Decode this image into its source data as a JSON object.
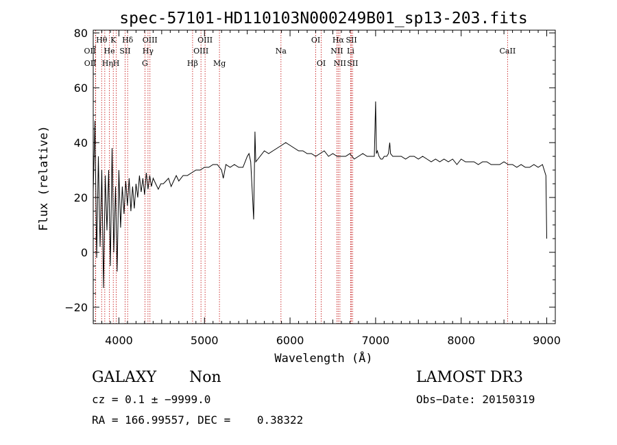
{
  "chart_data": {
    "type": "line",
    "title": "spec-57101-HD110103N000249B01_sp13-203.fits",
    "xlabel": "Wavelength (Å)",
    "ylabel": "Flux (relative)",
    "xlim": [
      3700,
      9100
    ],
    "ylim": [
      -26,
      81
    ],
    "xticks": [
      4000,
      5000,
      6000,
      7000,
      8000,
      9000
    ],
    "yticks": [
      -20,
      0,
      20,
      40,
      60,
      80
    ],
    "xtick_labels": [
      "4000",
      "5000",
      "6000",
      "7000",
      "8000",
      "9000"
    ],
    "ytick_labels": [
      "−20",
      "0",
      "20",
      "40",
      "60",
      "80"
    ],
    "series": [
      {
        "name": "spectrum",
        "x": [
          3700,
          3720,
          3740,
          3760,
          3780,
          3800,
          3820,
          3840,
          3860,
          3880,
          3900,
          3920,
          3940,
          3960,
          3980,
          4000,
          4020,
          4040,
          4060,
          4080,
          4100,
          4120,
          4140,
          4160,
          4180,
          4200,
          4220,
          4240,
          4260,
          4280,
          4300,
          4320,
          4340,
          4360,
          4380,
          4400,
          4430,
          4460,
          4490,
          4520,
          4550,
          4580,
          4610,
          4640,
          4670,
          4700,
          4750,
          4800,
          4850,
          4900,
          4950,
          5000,
          5050,
          5100,
          5150,
          5200,
          5220,
          5250,
          5300,
          5350,
          5400,
          5450,
          5500,
          5520,
          5540,
          5560,
          5575,
          5590,
          5600,
          5650,
          5700,
          5750,
          5800,
          5850,
          5900,
          5950,
          6000,
          6050,
          6100,
          6150,
          6200,
          6250,
          6300,
          6350,
          6400,
          6450,
          6500,
          6550,
          6600,
          6650,
          6700,
          6750,
          6800,
          6850,
          6900,
          6950,
          6985,
          7000,
          7010,
          7020,
          7040,
          7060,
          7080,
          7100,
          7130,
          7150,
          7165,
          7175,
          7200,
          7250,
          7300,
          7350,
          7400,
          7450,
          7500,
          7550,
          7600,
          7650,
          7700,
          7750,
          7800,
          7850,
          7900,
          7950,
          8000,
          8050,
          8100,
          8150,
          8200,
          8250,
          8300,
          8350,
          8400,
          8450,
          8500,
          8550,
          8600,
          8650,
          8700,
          8750,
          8800,
          8850,
          8900,
          8950,
          8990,
          9000
        ],
        "y": [
          22,
          48,
          -2,
          35,
          2,
          30,
          -13,
          28,
          8,
          30,
          -5,
          38,
          0,
          24,
          -7,
          30,
          9,
          24,
          14,
          26,
          17,
          27,
          15,
          24,
          16,
          25,
          20,
          28,
          22,
          27,
          21,
          29,
          23,
          28,
          24,
          27,
          25,
          23,
          25,
          25,
          26,
          27,
          24,
          26,
          28,
          26,
          28,
          28,
          29,
          30,
          30,
          31,
          31,
          32,
          32,
          30,
          27,
          32,
          31,
          32,
          31,
          31,
          35,
          36,
          33,
          21,
          12,
          44,
          33,
          35,
          37,
          36,
          37,
          38,
          39,
          40,
          39,
          38,
          37,
          37,
          36,
          36,
          35,
          36,
          37,
          35,
          36,
          35,
          35,
          35,
          36,
          34,
          35,
          36,
          35,
          35,
          35,
          55,
          36,
          37,
          35,
          34,
          34,
          35,
          35,
          36,
          40,
          36,
          35,
          35,
          35,
          34,
          35,
          35,
          34,
          35,
          34,
          33,
          34,
          33,
          34,
          33,
          34,
          32,
          34,
          33,
          33,
          33,
          32,
          33,
          33,
          32,
          32,
          32,
          33,
          32,
          32,
          31,
          32,
          31,
          31,
          32,
          31,
          32,
          28,
          5
        ]
      }
    ],
    "lines": [
      {
        "label": "OII",
        "wavelength": 3727,
        "row": 1,
        "offset": -8
      },
      {
        "label": "OII",
        "wavelength": 3729,
        "row": 2,
        "offset": -8
      },
      {
        "label": "Hθ",
        "wavelength": 3798,
        "row": 0,
        "offset": 0
      },
      {
        "label": "Hη",
        "wavelength": 3835,
        "row": 2,
        "offset": 4
      },
      {
        "label": "He",
        "wavelength": 3889,
        "row": 1,
        "offset": 0
      },
      {
        "label": "K",
        "wavelength": 3934,
        "row": 0,
        "offset": 0
      },
      {
        "label": "H",
        "wavelength": 3969,
        "row": 2,
        "offset": 0
      },
      {
        "label": "Hδ",
        "wavelength": 4102,
        "row": 0,
        "offset": 0
      },
      {
        "label": "SII",
        "wavelength": 4072,
        "row": 1,
        "offset": 0
      },
      {
        "label": "OIII",
        "wavelength": 4363,
        "row": 0,
        "offset": 0
      },
      {
        "label": "Hγ",
        "wavelength": 4340,
        "row": 1,
        "offset": 0
      },
      {
        "label": "G",
        "wavelength": 4304,
        "row": 2,
        "offset": 0
      },
      {
        "label": "Hβ",
        "wavelength": 4861,
        "row": 2,
        "offset": 0
      },
      {
        "label": "OIII",
        "wavelength": 4959,
        "row": 1,
        "offset": 0
      },
      {
        "label": "OIII",
        "wavelength": 5007,
        "row": 0,
        "offset": 0
      },
      {
        "label": "Mg",
        "wavelength": 5175,
        "row": 2,
        "offset": 0
      },
      {
        "label": "Na",
        "wavelength": 5894,
        "row": 1,
        "offset": 0
      },
      {
        "label": "OI",
        "wavelength": 6300,
        "row": 0,
        "offset": 0
      },
      {
        "label": "OI",
        "wavelength": 6364,
        "row": 2,
        "offset": 0
      },
      {
        "label": "Hα",
        "wavelength": 6563,
        "row": 0,
        "offset": 0
      },
      {
        "label": "NII",
        "wavelength": 6548,
        "row": 1,
        "offset": 0
      },
      {
        "label": "NII",
        "wavelength": 6583,
        "row": 2,
        "offset": 0
      },
      {
        "label": "SII",
        "wavelength": 6717,
        "row": 0,
        "offset": 0
      },
      {
        "label": "Li",
        "wavelength": 6708,
        "row": 1,
        "offset": 0
      },
      {
        "label": "SII",
        "wavelength": 6731,
        "row": 2,
        "offset": 0
      },
      {
        "label": "CaII",
        "wavelength": 8542,
        "row": 1,
        "offset": 0
      }
    ]
  },
  "info": {
    "class": "GALAXY",
    "subclass": "Non",
    "survey": "LAMOST DR3",
    "cz": "cz = 0.1 ± −9999.0",
    "obs_date": "Obs−Date: 20150319",
    "coords": "RA = 166.99557, DEC =    0.38322"
  }
}
